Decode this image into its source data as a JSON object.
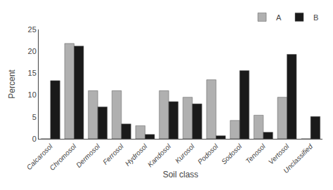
{
  "chart_data": {
    "type": "bar",
    "categories": [
      "Calcarosol",
      "Chromosol",
      "Dermosol",
      "Ferrosol",
      "Hydrosol",
      "Kandosol",
      "Kurosol",
      "Podosol",
      "Sodosol",
      "Tenosol",
      "Vertosol",
      "Unclassified"
    ],
    "series": [
      {
        "name": "A",
        "color": "#b0b0b0",
        "values": [
          0,
          21.8,
          11.0,
          11.0,
          3.0,
          11.0,
          9.5,
          13.5,
          4.2,
          5.4,
          9.5,
          0
        ]
      },
      {
        "name": "B",
        "color": "#1a1a1a",
        "values": [
          13.3,
          21.2,
          7.3,
          3.4,
          1.0,
          8.5,
          8.0,
          0.7,
          15.6,
          1.5,
          19.3,
          5.1
        ]
      }
    ],
    "xlabel": "Soil class",
    "ylabel": "Percent",
    "ylim": [
      0,
      25
    ],
    "yticks": [
      0,
      5,
      10,
      15,
      20,
      25
    ],
    "legend": "upper right",
    "grid": false
  }
}
